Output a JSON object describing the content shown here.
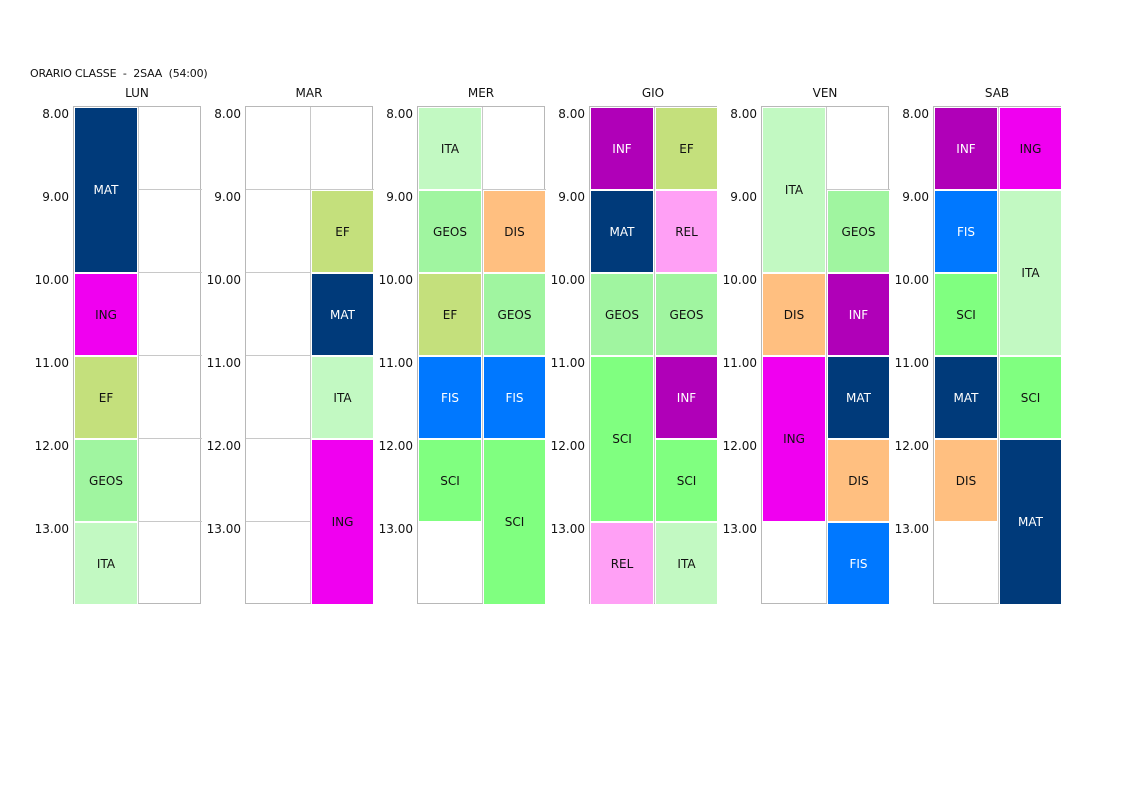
{
  "header": {
    "title": "ORARIO CLASSE  -  2SAA  (54:00)"
  },
  "times": [
    "8.00",
    "9.00",
    "10.00",
    "11.00",
    "12.00",
    "13.00"
  ],
  "subject_colors": {
    "MAT": "#003a7a",
    "ING": "#f000f0",
    "EF": "#c4e07c",
    "GEOS": "#a0f5a0",
    "ITA": "#c2f9c2",
    "DIS": "#ffbf80",
    "INF": "#b000b8",
    "FIS": "#0078ff",
    "SCI": "#80ff80",
    "REL": "#ffa0f5"
  },
  "days": [
    {
      "name": "LUN",
      "lessons": [
        {
          "subject": "MAT",
          "col": 0,
          "start": 0,
          "span": 2
        },
        {
          "subject": "ING",
          "col": 0,
          "start": 2,
          "span": 1
        },
        {
          "subject": "EF",
          "col": 0,
          "start": 3,
          "span": 1
        },
        {
          "subject": "GEOS",
          "col": 0,
          "start": 4,
          "span": 1
        },
        {
          "subject": "ITA",
          "col": 0,
          "start": 5,
          "span": 1
        }
      ]
    },
    {
      "name": "MAR",
      "lessons": [
        {
          "subject": "EF",
          "col": 1,
          "start": 1,
          "span": 1
        },
        {
          "subject": "MAT",
          "col": 1,
          "start": 2,
          "span": 1
        },
        {
          "subject": "ITA",
          "col": 1,
          "start": 3,
          "span": 1
        },
        {
          "subject": "ING",
          "col": 1,
          "start": 4,
          "span": 2
        }
      ]
    },
    {
      "name": "MER",
      "lessons": [
        {
          "subject": "ITA",
          "col": 0,
          "start": 0,
          "span": 1
        },
        {
          "subject": "GEOS",
          "col": 0,
          "start": 1,
          "span": 1
        },
        {
          "subject": "DIS",
          "col": 1,
          "start": 1,
          "span": 1
        },
        {
          "subject": "EF",
          "col": 0,
          "start": 2,
          "span": 1
        },
        {
          "subject": "GEOS",
          "col": 1,
          "start": 2,
          "span": 1
        },
        {
          "subject": "FIS",
          "col": 0,
          "start": 3,
          "span": 1
        },
        {
          "subject": "FIS",
          "col": 1,
          "start": 3,
          "span": 1
        },
        {
          "subject": "SCI",
          "col": 0,
          "start": 4,
          "span": 1
        },
        {
          "subject": "SCI",
          "col": 1,
          "start": 4,
          "span": 2
        }
      ]
    },
    {
      "name": "GIO",
      "lessons": [
        {
          "subject": "INF",
          "col": 0,
          "start": 0,
          "span": 1
        },
        {
          "subject": "EF",
          "col": 1,
          "start": 0,
          "span": 1
        },
        {
          "subject": "MAT",
          "col": 0,
          "start": 1,
          "span": 1
        },
        {
          "subject": "REL",
          "col": 1,
          "start": 1,
          "span": 1
        },
        {
          "subject": "GEOS",
          "col": 0,
          "start": 2,
          "span": 1
        },
        {
          "subject": "GEOS",
          "col": 1,
          "start": 2,
          "span": 1
        },
        {
          "subject": "SCI",
          "col": 0,
          "start": 3,
          "span": 2
        },
        {
          "subject": "INF",
          "col": 1,
          "start": 3,
          "span": 1
        },
        {
          "subject": "SCI",
          "col": 1,
          "start": 4,
          "span": 1
        },
        {
          "subject": "REL",
          "col": 0,
          "start": 5,
          "span": 1
        },
        {
          "subject": "ITA",
          "col": 1,
          "start": 5,
          "span": 1
        }
      ]
    },
    {
      "name": "VEN",
      "lessons": [
        {
          "subject": "ITA",
          "col": 0,
          "start": 0,
          "span": 2
        },
        {
          "subject": "GEOS",
          "col": 1,
          "start": 1,
          "span": 1
        },
        {
          "subject": "DIS",
          "col": 0,
          "start": 2,
          "span": 1
        },
        {
          "subject": "INF",
          "col": 1,
          "start": 2,
          "span": 1
        },
        {
          "subject": "ING",
          "col": 0,
          "start": 3,
          "span": 2
        },
        {
          "subject": "MAT",
          "col": 1,
          "start": 3,
          "span": 1
        },
        {
          "subject": "DIS",
          "col": 1,
          "start": 4,
          "span": 1
        },
        {
          "subject": "FIS",
          "col": 1,
          "start": 5,
          "span": 1
        }
      ]
    },
    {
      "name": "SAB",
      "lessons": [
        {
          "subject": "INF",
          "col": 0,
          "start": 0,
          "span": 1
        },
        {
          "subject": "ING",
          "col": 1,
          "start": 0,
          "span": 1
        },
        {
          "subject": "FIS",
          "col": 0,
          "start": 1,
          "span": 1
        },
        {
          "subject": "ITA",
          "col": 1,
          "start": 1,
          "span": 2
        },
        {
          "subject": "SCI",
          "col": 0,
          "start": 2,
          "span": 1
        },
        {
          "subject": "MAT",
          "col": 0,
          "start": 3,
          "span": 1
        },
        {
          "subject": "SCI",
          "col": 1,
          "start": 3,
          "span": 1
        },
        {
          "subject": "DIS",
          "col": 0,
          "start": 4,
          "span": 1
        },
        {
          "subject": "MAT",
          "col": 1,
          "start": 4,
          "span": 2
        }
      ]
    }
  ]
}
